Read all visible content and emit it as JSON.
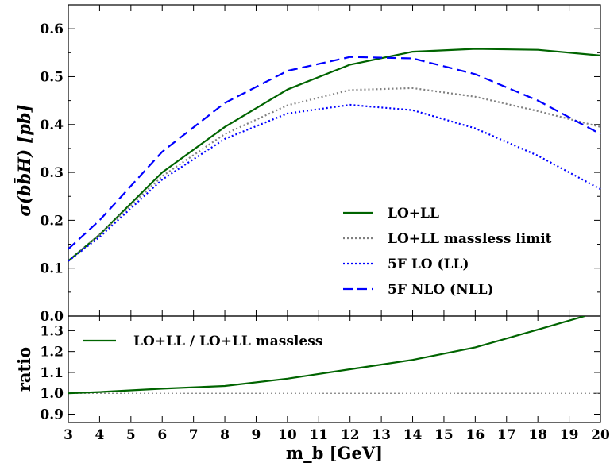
{
  "chart_data": [
    {
      "type": "line",
      "ylabel": "σ(bb̄H) [pb]",
      "xlim": [
        3,
        20
      ],
      "ylim": [
        0.0,
        0.65
      ],
      "yticks": [
        "0.0",
        "0.1",
        "0.2",
        "0.3",
        "0.4",
        "0.5",
        "0.6"
      ],
      "legend_position": "lower-right",
      "x": [
        3,
        4,
        6,
        8,
        10,
        12,
        14,
        16,
        18,
        20
      ],
      "series": [
        {
          "name": "LO+LL",
          "style": "solid",
          "color": "#006400",
          "values": [
            0.115,
            0.17,
            0.3,
            0.395,
            0.473,
            0.525,
            0.552,
            0.558,
            0.556,
            0.544
          ]
        },
        {
          "name": "LO+LL massless limit",
          "style": "dotted",
          "color": "#808080",
          "values": [
            0.115,
            0.17,
            0.292,
            0.38,
            0.44,
            0.472,
            0.476,
            0.458,
            0.428,
            0.395
          ]
        },
        {
          "name": "5F LO (LL)",
          "style": "dotted",
          "color": "#0000ff",
          "values": [
            0.115,
            0.165,
            0.285,
            0.37,
            0.423,
            0.441,
            0.43,
            0.392,
            0.335,
            0.265
          ]
        },
        {
          "name": "5F NLO (NLL)",
          "style": "dashed",
          "color": "#0000ff",
          "values": [
            0.14,
            0.2,
            0.343,
            0.445,
            0.512,
            0.541,
            0.538,
            0.505,
            0.45,
            0.38
          ]
        }
      ]
    },
    {
      "type": "line",
      "xlabel": "m_b [GeV]",
      "ylabel": "ratio",
      "xlim": [
        3,
        20
      ],
      "ylim": [
        0.86,
        1.37
      ],
      "xticks": [
        "3",
        "4",
        "5",
        "6",
        "7",
        "8",
        "9",
        "10",
        "11",
        "12",
        "13",
        "14",
        "15",
        "16",
        "17",
        "18",
        "19",
        "20"
      ],
      "yticks": [
        "0.9",
        "1.0",
        "1.1",
        "1.2",
        "1.3"
      ],
      "reference_line": 1.0,
      "legend_position": "upper-left",
      "x": [
        3,
        4,
        6,
        8,
        10,
        12,
        14,
        16,
        18,
        19.5
      ],
      "series": [
        {
          "name": "LO+LL / LO+LL massless",
          "style": "solid",
          "color": "#006400",
          "values": [
            1.0,
            1.006,
            1.022,
            1.035,
            1.07,
            1.115,
            1.16,
            1.22,
            1.305,
            1.37
          ]
        }
      ]
    }
  ]
}
